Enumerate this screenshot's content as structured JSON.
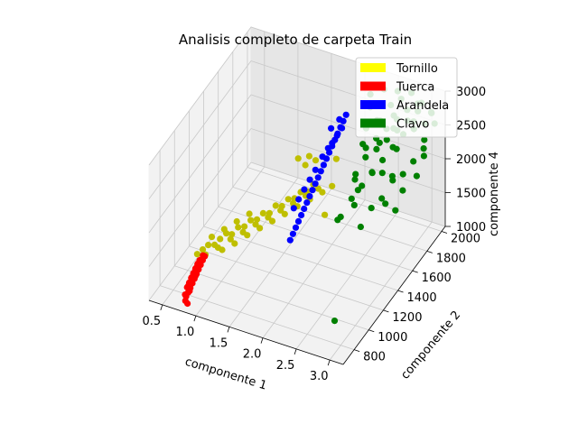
{
  "chart_data": {
    "type": "scatter",
    "projection": "3d",
    "title": "Analisis completo de carpeta Train",
    "xlabel": "componente 1",
    "ylabel": "componente 2",
    "zlabel": "componente 4",
    "xlim": [
      0.3,
      3.2
    ],
    "ylim": [
      650,
      2050
    ],
    "zlim": [
      1000,
      3000
    ],
    "xticks": [
      "0.5",
      "1.0",
      "1.5",
      "2.0",
      "2.5",
      "3.0"
    ],
    "yticks": [
      "800",
      "1000",
      "1200",
      "1400",
      "1600",
      "1800",
      "2000"
    ],
    "zticks": [
      "1000",
      "1500",
      "2000",
      "2500",
      "3000"
    ],
    "grid": true,
    "legend_position": "top-right",
    "legend": [
      {
        "label": "Tornillo",
        "color": "#ffff00"
      },
      {
        "label": "Tuerca",
        "color": "#ff0000"
      },
      {
        "label": "Arandela",
        "color": "#0000ff"
      },
      {
        "label": "Clavo",
        "color": "#008000"
      }
    ],
    "series": [
      {
        "name": "Tornillo",
        "color": "#bfbf00",
        "points": [
          [
            0.9,
            760,
            1720
          ],
          [
            0.95,
            790,
            1760
          ],
          [
            1.0,
            820,
            1800
          ],
          [
            1.05,
            860,
            1760
          ],
          [
            1.1,
            890,
            1820
          ],
          [
            1.15,
            930,
            1860
          ],
          [
            1.2,
            960,
            1820
          ],
          [
            1.25,
            1000,
            1880
          ],
          [
            1.3,
            1040,
            1850
          ],
          [
            1.35,
            1080,
            1900
          ],
          [
            1.4,
            1120,
            1870
          ],
          [
            1.45,
            1160,
            1920
          ],
          [
            1.5,
            1200,
            1880
          ],
          [
            1.55,
            1240,
            1950
          ],
          [
            1.6,
            1280,
            1900
          ],
          [
            1.65,
            1320,
            1960
          ],
          [
            1.7,
            1360,
            1930
          ],
          [
            1.75,
            1400,
            1980
          ],
          [
            1.8,
            1440,
            1950
          ],
          [
            1.85,
            1480,
            2010
          ],
          [
            0.98,
            800,
            1680
          ],
          [
            1.08,
            880,
            1700
          ],
          [
            1.18,
            960,
            1740
          ],
          [
            1.28,
            1040,
            1760
          ],
          [
            1.38,
            1120,
            1790
          ],
          [
            1.48,
            1200,
            1810
          ],
          [
            1.58,
            1280,
            1830
          ],
          [
            1.68,
            1360,
            1850
          ],
          [
            1.78,
            1440,
            1880
          ],
          [
            1.88,
            1520,
            1900
          ],
          [
            1.12,
            900,
            1650
          ],
          [
            1.22,
            980,
            1660
          ],
          [
            1.32,
            1060,
            1700
          ],
          [
            1.42,
            1140,
            1720
          ],
          [
            1.52,
            1220,
            1740
          ],
          [
            1.62,
            1300,
            1760
          ],
          [
            1.72,
            1380,
            1790
          ],
          [
            1.82,
            1460,
            1810
          ],
          [
            1.92,
            1540,
            1830
          ],
          [
            2.0,
            1600,
            1860
          ],
          [
            1.03,
            840,
            1900
          ],
          [
            1.13,
            920,
            1930
          ],
          [
            1.23,
            1000,
            1960
          ],
          [
            1.33,
            1080,
            1990
          ],
          [
            1.6,
            1600,
            2040
          ],
          [
            1.7,
            1650,
            2070
          ],
          [
            1.55,
            1700,
            2010
          ],
          [
            1.45,
            1640,
            2030
          ],
          [
            1.9,
            1750,
            2010
          ],
          [
            2.0,
            1500,
            1580
          ]
        ]
      },
      {
        "name": "Tuerca",
        "color": "#ff0000",
        "points": [
          [
            0.8,
            700,
            1150
          ],
          [
            0.82,
            710,
            1200
          ],
          [
            0.84,
            720,
            1260
          ],
          [
            0.86,
            730,
            1320
          ],
          [
            0.88,
            740,
            1380
          ],
          [
            0.9,
            750,
            1440
          ],
          [
            0.92,
            760,
            1500
          ],
          [
            0.94,
            770,
            1560
          ],
          [
            0.96,
            780,
            1620
          ],
          [
            0.98,
            790,
            1670
          ],
          [
            0.81,
            705,
            1280
          ],
          [
            0.83,
            715,
            1340
          ],
          [
            0.85,
            725,
            1400
          ],
          [
            0.87,
            735,
            1460
          ],
          [
            0.89,
            745,
            1520
          ],
          [
            0.91,
            755,
            1580
          ],
          [
            0.93,
            765,
            1630
          ],
          [
            0.8,
            690,
            1100
          ],
          [
            0.82,
            700,
            1050
          ],
          [
            0.84,
            710,
            1230
          ],
          [
            0.86,
            720,
            1420
          ],
          [
            0.88,
            730,
            1480
          ],
          [
            0.9,
            740,
            1540
          ],
          [
            0.92,
            750,
            1600
          ],
          [
            0.95,
            760,
            1650
          ],
          [
            0.97,
            775,
            1700
          ],
          [
            0.79,
            695,
            1180
          ],
          [
            0.83,
            705,
            1310
          ],
          [
            0.87,
            715,
            1370
          ],
          [
            0.91,
            725,
            1450
          ]
        ]
      },
      {
        "name": "Arandela",
        "color": "#0000ff",
        "points": [
          [
            1.7,
            1300,
            1400
          ],
          [
            1.72,
            1320,
            1470
          ],
          [
            1.74,
            1340,
            1540
          ],
          [
            1.76,
            1360,
            1610
          ],
          [
            1.78,
            1380,
            1680
          ],
          [
            1.8,
            1400,
            1750
          ],
          [
            1.82,
            1420,
            1820
          ],
          [
            1.84,
            1440,
            1890
          ],
          [
            1.86,
            1460,
            1960
          ],
          [
            1.88,
            1480,
            2030
          ],
          [
            1.9,
            1500,
            2100
          ],
          [
            1.92,
            1520,
            2170
          ],
          [
            1.94,
            1540,
            2240
          ],
          [
            1.96,
            1560,
            2310
          ],
          [
            1.98,
            1580,
            2380
          ],
          [
            2.0,
            1600,
            2450
          ],
          [
            2.02,
            1620,
            2520
          ],
          [
            2.04,
            1640,
            2590
          ],
          [
            2.06,
            1660,
            2660
          ],
          [
            2.08,
            1680,
            2730
          ],
          [
            1.98,
            1620,
            2460
          ],
          [
            2.02,
            1650,
            2540
          ],
          [
            2.06,
            1680,
            2620
          ],
          [
            1.94,
            1600,
            2400
          ],
          [
            1.9,
            1560,
            2320
          ],
          [
            1.86,
            1500,
            2200
          ],
          [
            1.82,
            1460,
            2100
          ],
          [
            1.78,
            1420,
            2000
          ],
          [
            1.74,
            1380,
            1900
          ],
          [
            1.7,
            1350,
            1800
          ],
          [
            2.1,
            1700,
            2800
          ],
          [
            2.0,
            1700,
            2700
          ],
          [
            1.92,
            1660,
            2600
          ]
        ]
      },
      {
        "name": "Clavo",
        "color": "#008000",
        "points": [
          [
            2.8,
            900,
            1150
          ],
          [
            2.3,
            1400,
            1750
          ],
          [
            2.4,
            1500,
            1950
          ],
          [
            2.5,
            1550,
            2100
          ],
          [
            2.6,
            1600,
            2250
          ],
          [
            2.7,
            1650,
            2400
          ],
          [
            2.8,
            1700,
            2550
          ],
          [
            2.9,
            1750,
            2700
          ],
          [
            3.0,
            1800,
            2850
          ],
          [
            2.45,
            1650,
            2500
          ],
          [
            2.55,
            1700,
            2600
          ],
          [
            2.65,
            1750,
            2700
          ],
          [
            2.75,
            1800,
            2800
          ],
          [
            2.85,
            1850,
            2900
          ],
          [
            2.95,
            1900,
            2950
          ],
          [
            2.5,
            1750,
            2350
          ],
          [
            2.6,
            1800,
            2450
          ],
          [
            2.7,
            1850,
            2550
          ],
          [
            2.8,
            1900,
            2650
          ],
          [
            2.9,
            1950,
            2750
          ],
          [
            3.0,
            1950,
            2600
          ],
          [
            3.05,
            1900,
            2450
          ],
          [
            3.1,
            1850,
            2300
          ],
          [
            3.1,
            1750,
            2150
          ],
          [
            3.0,
            1650,
            2050
          ],
          [
            2.9,
            1600,
            2300
          ],
          [
            2.85,
            1500,
            2100
          ],
          [
            2.75,
            1450,
            2000
          ],
          [
            2.7,
            1350,
            1850
          ],
          [
            2.65,
            1550,
            2350
          ],
          [
            2.55,
            1450,
            2200
          ],
          [
            2.4,
            1700,
            2700
          ],
          [
            2.35,
            1800,
            2850
          ],
          [
            2.3,
            1850,
            2950
          ],
          [
            2.45,
            1900,
            3000
          ],
          [
            2.6,
            1950,
            2950
          ],
          [
            2.75,
            2000,
            2900
          ],
          [
            2.9,
            2000,
            2800
          ],
          [
            3.05,
            2000,
            2700
          ],
          [
            3.15,
            1950,
            2650
          ],
          [
            3.15,
            1800,
            2500
          ],
          [
            3.05,
            1750,
            2350
          ],
          [
            2.95,
            1700,
            2200
          ],
          [
            2.85,
            1650,
            2150
          ],
          [
            2.5,
            1600,
            2450
          ],
          [
            2.55,
            1900,
            2800
          ],
          [
            2.4,
            1850,
            2600
          ],
          [
            2.35,
            1600,
            2150
          ],
          [
            2.45,
            1500,
            2250
          ],
          [
            2.6,
            1700,
            2550
          ],
          [
            2.7,
            1800,
            2650
          ],
          [
            2.8,
            1750,
            2450
          ],
          [
            2.95,
            1850,
            2650
          ],
          [
            3.1,
            1950,
            2800
          ],
          [
            2.65,
            1950,
            2850
          ],
          [
            2.5,
            1800,
            2700
          ],
          [
            2.75,
            1600,
            2300
          ],
          [
            2.85,
            1550,
            1950
          ],
          [
            3.0,
            1550,
            1900
          ],
          [
            2.4,
            1350,
            1900
          ],
          [
            2.55,
            1400,
            2050
          ],
          [
            2.65,
            1850,
            2750
          ],
          [
            2.35,
            1700,
            2450
          ]
        ]
      }
    ]
  }
}
